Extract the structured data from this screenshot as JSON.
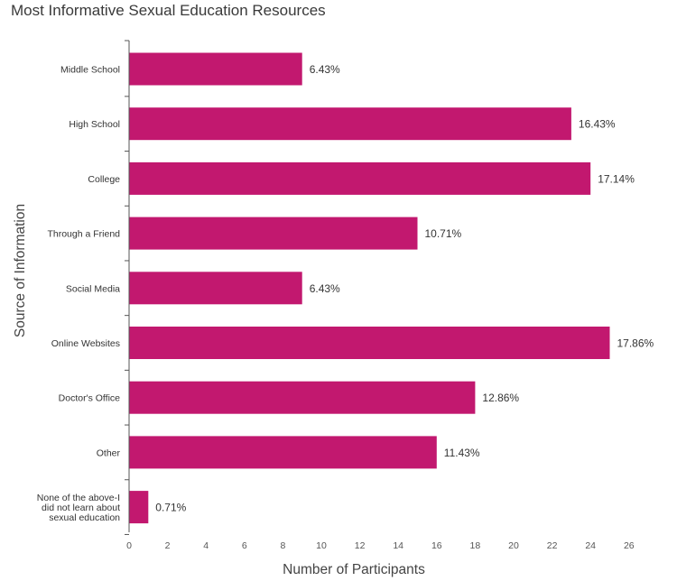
{
  "chart_data": {
    "type": "bar",
    "orientation": "horizontal",
    "title": "Most Informative Sexual Education Resources",
    "xlabel": "Number of Participants",
    "ylabel": "Source of Information",
    "categories": [
      [
        "Middle School"
      ],
      [
        "High School"
      ],
      [
        "College"
      ],
      [
        "Through a Friend"
      ],
      [
        "Social Media"
      ],
      [
        "Online Websites"
      ],
      [
        "Doctor's Office"
      ],
      [
        "Other"
      ],
      [
        "None of the above-I",
        "did not learn about",
        "sexual education"
      ]
    ],
    "values": [
      9,
      23,
      24,
      15,
      9,
      25,
      18,
      16,
      1
    ],
    "data_labels": [
      "6.43%",
      "16.43%",
      "17.14%",
      "10.71%",
      "6.43%",
      "17.86%",
      "12.86%",
      "11.43%",
      "0.71%"
    ],
    "xlim": [
      0,
      27
    ],
    "xticks": [
      0,
      2,
      4,
      6,
      8,
      10,
      12,
      14,
      16,
      18,
      20,
      22,
      24,
      26
    ],
    "grid": false,
    "legend": "none",
    "bar_color": "#c2186f"
  }
}
